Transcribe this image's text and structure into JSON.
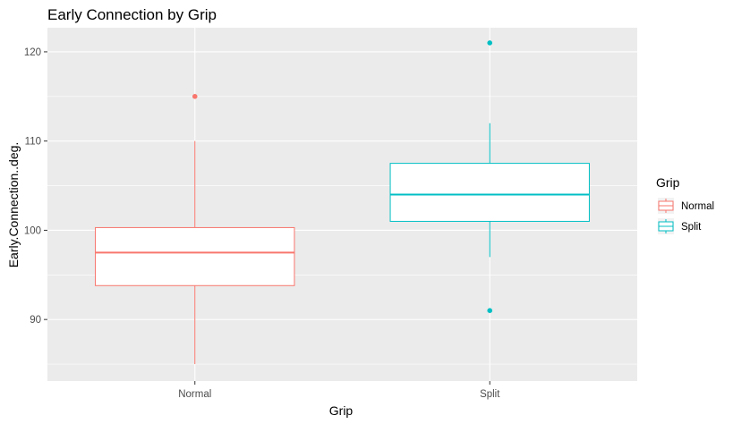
{
  "chart_data": {
    "type": "boxplot",
    "title": "Early Connection by Grip",
    "xlabel": "Grip",
    "ylabel": "Early.Connection..deg.",
    "categories": [
      "Normal",
      "Split"
    ],
    "ylim": [
      83.1,
      122.7
    ],
    "yticks": [
      90,
      100,
      110,
      120
    ],
    "grid": true,
    "legend": {
      "title": "Grip",
      "position": "right",
      "entries": [
        "Normal",
        "Split"
      ]
    },
    "colors": {
      "Normal": "#f8766d",
      "Split": "#00bfc4",
      "panel": "#ebebeb",
      "grid": "#ffffff"
    },
    "boxes": [
      {
        "category": "Normal",
        "lower_whisker": 85,
        "q1": 93.8,
        "median": 97.5,
        "q3": 100.3,
        "upper_whisker": 110,
        "outliers": [
          115
        ]
      },
      {
        "category": "Split",
        "lower_whisker": 97,
        "q1": 101,
        "median": 104,
        "q3": 107.5,
        "upper_whisker": 112,
        "outliers": [
          121,
          91
        ]
      }
    ]
  }
}
